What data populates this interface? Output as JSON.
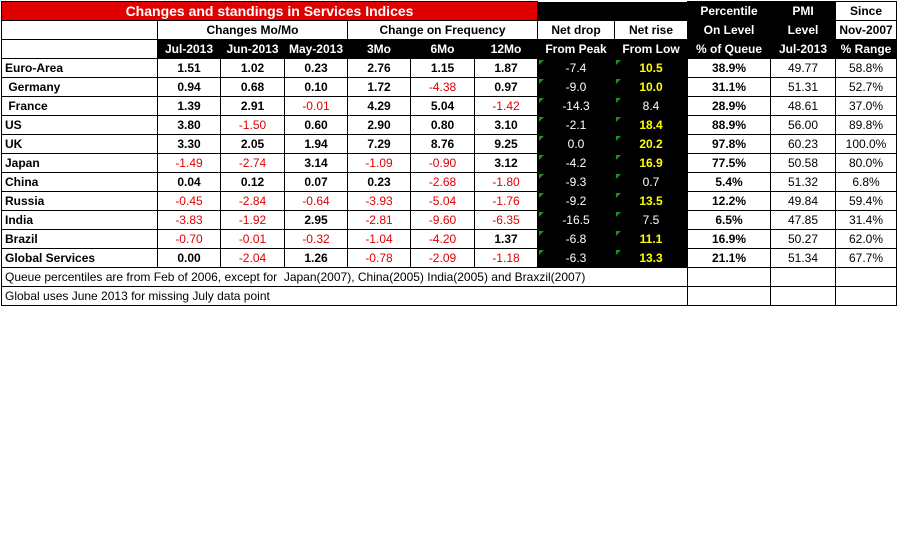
{
  "title": "Changes and standings in Services Indices",
  "groups": {
    "mo": "Changes Mo/Mo",
    "freq": "Change on Frequency",
    "net_drop": "Net drop",
    "net_rise": "Net rise",
    "percentile": "Percentile",
    "pmi": "PMI",
    "since": "Since"
  },
  "sub": {
    "on_level": "On Level",
    "level": "Level",
    "since_date": "Nov-2007"
  },
  "cols": [
    "Jul-2013",
    "Jun-2013",
    "May-2013",
    "3Mo",
    "6Mo",
    "12Mo",
    "From Peak",
    "From Low",
    "% of Queue",
    "Jul-2013",
    "% Range"
  ],
  "rows": [
    {
      "name": "Euro-Area",
      "v": [
        "1.51",
        "1.02",
        "0.23",
        "2.76",
        "1.15",
        "1.87",
        "-7.4",
        "10.5",
        "38.9%",
        "49.77",
        "58.8%"
      ]
    },
    {
      "name": " Germany",
      "v": [
        "0.94",
        "0.68",
        "0.10",
        "1.72",
        "-4.38",
        "0.97",
        "-9.0",
        "10.0",
        "31.1%",
        "51.31",
        "52.7%"
      ]
    },
    {
      "name": " France",
      "v": [
        "1.39",
        "2.91",
        "-0.01",
        "4.29",
        "5.04",
        "-1.42",
        "-14.3",
        "8.4",
        "28.9%",
        "48.61",
        "37.0%"
      ]
    },
    {
      "name": "US",
      "v": [
        "3.80",
        "-1.50",
        "0.60",
        "2.90",
        "0.80",
        "3.10",
        "-2.1",
        "18.4",
        "88.9%",
        "56.00",
        "89.8%"
      ]
    },
    {
      "name": "UK",
      "v": [
        "3.30",
        "2.05",
        "1.94",
        "7.29",
        "8.76",
        "9.25",
        "0.0",
        "20.2",
        "97.8%",
        "60.23",
        "100.0%"
      ]
    },
    {
      "name": "Japan",
      "v": [
        "-1.49",
        "-2.74",
        "3.14",
        "-1.09",
        "-0.90",
        "3.12",
        "-4.2",
        "16.9",
        "77.5%",
        "50.58",
        "80.0%"
      ]
    },
    {
      "name": "China",
      "v": [
        "0.04",
        "0.12",
        "0.07",
        "0.23",
        "-2.68",
        "-1.80",
        "-9.3",
        "0.7",
        "5.4%",
        "51.32",
        "6.8%"
      ]
    },
    {
      "name": "Russia",
      "v": [
        "-0.45",
        "-2.84",
        "-0.64",
        "-3.93",
        "-5.04",
        "-1.76",
        "-9.2",
        "13.5",
        "12.2%",
        "49.84",
        "59.4%"
      ]
    },
    {
      "name": "India",
      "v": [
        "-3.83",
        "-1.92",
        "2.95",
        "-2.81",
        "-9.60",
        "-6.35",
        "-16.5",
        "7.5",
        "6.5%",
        "47.85",
        "31.4%"
      ]
    },
    {
      "name": "Brazil",
      "v": [
        "-0.70",
        "-0.01",
        "-0.32",
        "-1.04",
        "-4.20",
        "1.37",
        "-6.8",
        "11.1",
        "16.9%",
        "50.27",
        "62.0%"
      ]
    },
    {
      "name": "Global Services",
      "v": [
        "0.00",
        "-2.04",
        "1.26",
        "-0.78",
        "-2.09",
        "-1.18",
        "-6.3",
        "13.3",
        "21.1%",
        "51.34",
        "67.7%"
      ]
    }
  ],
  "notes": [
    "Queue percentiles are from Feb of 2006, except for  Japan(2007), China(2005) India(2005) and Braxzil(2007)",
    "Global uses June 2013 for missing July data point"
  ],
  "colors": {
    "title_bg": "#e00000",
    "negative": "#e00000",
    "highlight": "#ffff00",
    "dark": "#000000"
  }
}
